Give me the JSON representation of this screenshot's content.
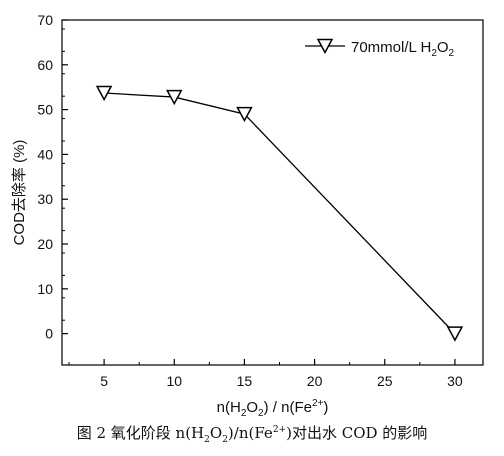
{
  "chart_data": {
    "type": "line",
    "x": [
      5,
      10,
      15,
      30
    ],
    "series": [
      {
        "name": "70mmol/L H2O2",
        "values": [
          53.7,
          52.8,
          49.0,
          0.0
        ]
      }
    ],
    "xlabel": "n(H2O2) / n(Fe2+)",
    "ylabel": "COD去除率 (%)",
    "xticks": [
      5,
      10,
      15,
      20,
      25,
      30
    ],
    "yticks": [
      0,
      10,
      20,
      30,
      40,
      50,
      60,
      70
    ],
    "xlim": [
      2,
      32
    ],
    "ylim": [
      -7,
      70
    ],
    "marker": "open-down-triangle",
    "line_color": "#000000",
    "legend_position": "top-right",
    "grid": false
  },
  "caption": {
    "prefix": "图 2  氧化阶段 n(H",
    "sub1": "2",
    "mid1": "O",
    "sub2": "2",
    "mid2": ")/n(Fe",
    "sup1": "2+",
    "suffix": ")对出水 COD 的影响"
  }
}
